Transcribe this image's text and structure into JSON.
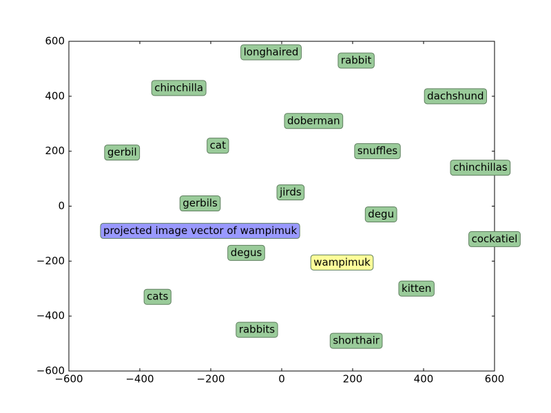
{
  "chart_data": {
    "type": "scatter",
    "points": [
      {
        "label": "longhaired",
        "x": -30,
        "y": 560,
        "color": "#9acb9a"
      },
      {
        "label": "rabbit",
        "x": 210,
        "y": 530,
        "color": "#9acb9a"
      },
      {
        "label": "chinchilla",
        "x": -290,
        "y": 430,
        "color": "#9acb9a"
      },
      {
        "label": "dachshund",
        "x": 490,
        "y": 400,
        "color": "#9acb9a"
      },
      {
        "label": "doberman",
        "x": 90,
        "y": 310,
        "color": "#9acb9a"
      },
      {
        "label": "cat",
        "x": -180,
        "y": 220,
        "color": "#9acb9a"
      },
      {
        "label": "gerbil",
        "x": -450,
        "y": 195,
        "color": "#9acb9a"
      },
      {
        "label": "snuffles",
        "x": 270,
        "y": 200,
        "color": "#9acb9a"
      },
      {
        "label": "chinchillas",
        "x": 560,
        "y": 140,
        "color": "#9acb9a"
      },
      {
        "label": "jirds",
        "x": 25,
        "y": 50,
        "color": "#9acb9a"
      },
      {
        "label": "gerbils",
        "x": -230,
        "y": 10,
        "color": "#9acb9a"
      },
      {
        "label": "degu",
        "x": 280,
        "y": -30,
        "color": "#9acb9a"
      },
      {
        "label": "projected image vector of wampimuk",
        "x": -230,
        "y": -90,
        "color": "#9999ff"
      },
      {
        "label": "cockatiel",
        "x": 600,
        "y": -120,
        "color": "#9acb9a"
      },
      {
        "label": "degus",
        "x": -100,
        "y": -170,
        "color": "#9acb9a"
      },
      {
        "label": "wampimuk",
        "x": 170,
        "y": -205,
        "color": "#ffff99"
      },
      {
        "label": "kitten",
        "x": 380,
        "y": -300,
        "color": "#9acb9a"
      },
      {
        "label": "cats",
        "x": -350,
        "y": -330,
        "color": "#9acb9a"
      },
      {
        "label": "rabbits",
        "x": -70,
        "y": -450,
        "color": "#9acb9a"
      },
      {
        "label": "shorthair",
        "x": 210,
        "y": -490,
        "color": "#9acb9a"
      }
    ],
    "xlim": [
      -600,
      600
    ],
    "ylim": [
      -600,
      600
    ],
    "xticks": [
      {
        "value": -600,
        "label": "−600"
      },
      {
        "value": -400,
        "label": "−400"
      },
      {
        "value": -200,
        "label": "−200"
      },
      0,
      200,
      400,
      600
    ],
    "yticks": [
      {
        "value": -600,
        "label": "−600"
      },
      {
        "value": -400,
        "label": "−400"
      },
      {
        "value": -200,
        "label": "−200"
      },
      0,
      200,
      400,
      600
    ]
  }
}
